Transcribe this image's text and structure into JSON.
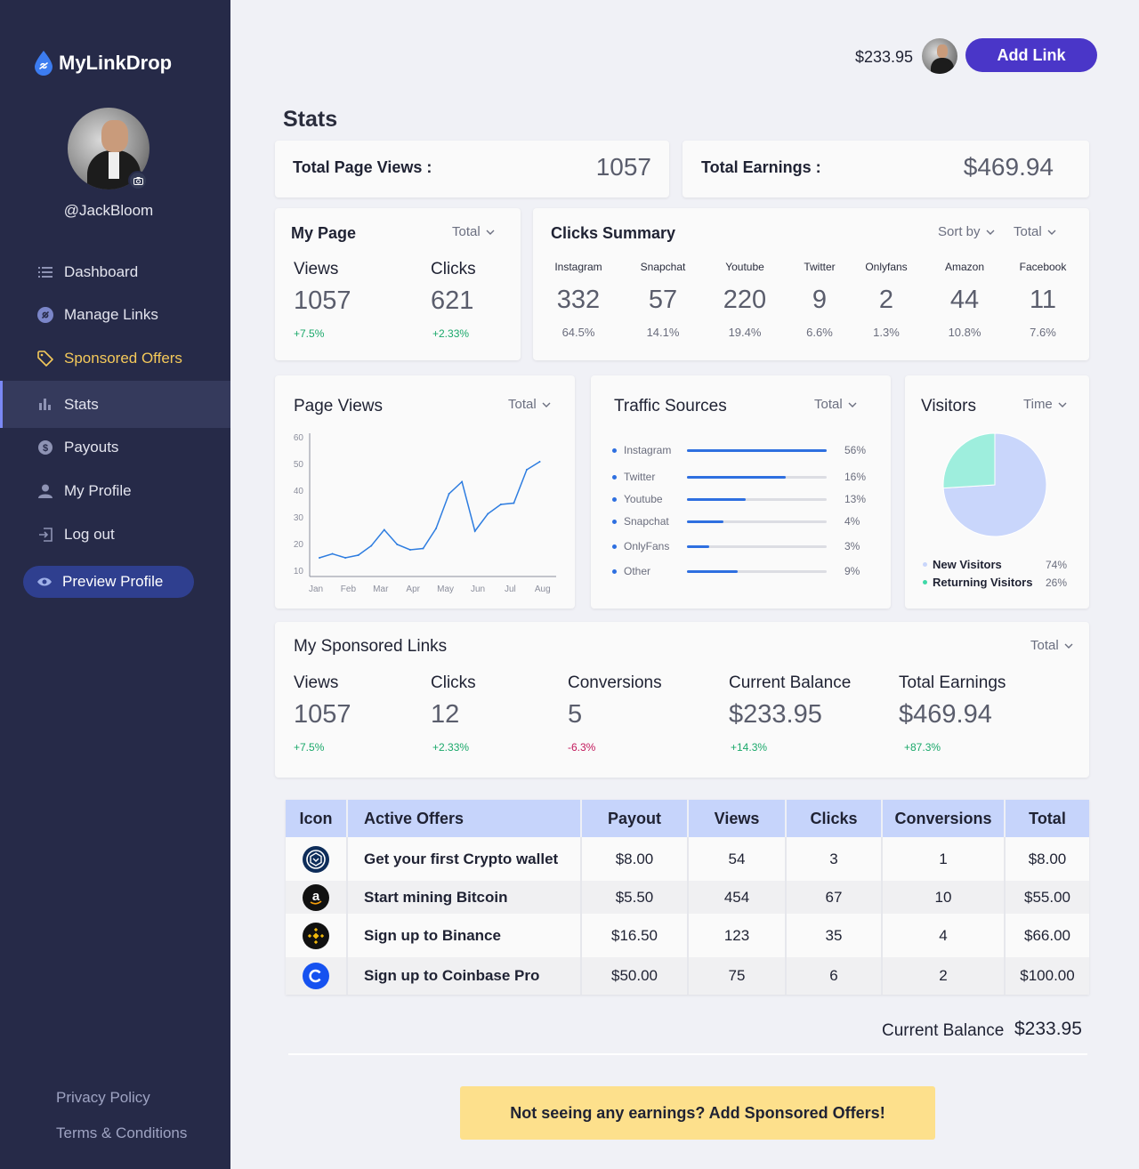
{
  "app": {
    "name": "MyLinkDrop"
  },
  "profile": {
    "username": "@JackBloom"
  },
  "nav": {
    "items": [
      {
        "label": "Dashboard",
        "icon": "list-icon"
      },
      {
        "label": "Manage Links",
        "icon": "link-icon"
      },
      {
        "label": "Sponsored Offers",
        "icon": "tag-icon"
      },
      {
        "label": "Stats",
        "icon": "bar-chart-icon"
      },
      {
        "label": "Payouts",
        "icon": "dollar-circle-icon"
      },
      {
        "label": "My Profile",
        "icon": "person-icon"
      },
      {
        "label": "Log out",
        "icon": "logout-icon"
      }
    ],
    "preview_label": "Preview Profile",
    "privacy": "Privacy Policy",
    "terms": "Terms & Conditions"
  },
  "topbar": {
    "balance": "$233.95",
    "add_link_label": "Add Link"
  },
  "page_title": "Stats",
  "summary": {
    "views_label": "Total Page Views :",
    "views_value": "1057",
    "earnings_label": "Total Earnings :",
    "earnings_value": "$469.94"
  },
  "my_page": {
    "title": "My Page",
    "filter": "Total",
    "views_label": "Views",
    "views_value": "1057",
    "views_delta": "+7.5%",
    "clicks_label": "Clicks",
    "clicks_value": "621",
    "clicks_delta": "+2.33%"
  },
  "clicks_summary": {
    "title": "Clicks Summary",
    "sort_label": "Sort by",
    "filter": "Total",
    "columns": [
      {
        "name": "Instagram",
        "value": "332",
        "pct": "64.5%"
      },
      {
        "name": "Snapchat",
        "value": "57",
        "pct": "14.1%"
      },
      {
        "name": "Youtube",
        "value": "220",
        "pct": "19.4%"
      },
      {
        "name": "Twitter",
        "value": "9",
        "pct": "6.6%"
      },
      {
        "name": "Onlyfans",
        "value": "2",
        "pct": "1.3%"
      },
      {
        "name": "Amazon",
        "value": "44",
        "pct": "10.8%"
      },
      {
        "name": "Facebook",
        "value": "11",
        "pct": "7.6%"
      }
    ]
  },
  "page_views": {
    "title": "Page Views",
    "filter": "Total",
    "y_ticks": [
      "60",
      "50",
      "40",
      "30",
      "20",
      "10"
    ],
    "x_ticks": [
      "Jan",
      "Feb",
      "Mar",
      "Apr",
      "May",
      "Jun",
      "Jul",
      "Aug"
    ]
  },
  "chart_data": {
    "type": "line",
    "title": "Page Views",
    "x": [
      0,
      0.4,
      0.8,
      1.2,
      1.6,
      2.0,
      2.4,
      2.8,
      3.2,
      3.6,
      4.0,
      4.4,
      4.8,
      5.2,
      5.6,
      6.0,
      6.4,
      6.8
    ],
    "y": [
      15,
      16.5,
      15,
      16,
      19.5,
      25.5,
      20,
      18,
      18.5,
      26,
      39,
      43.5,
      25,
      31.5,
      35,
      35.5,
      48,
      51
    ],
    "x_ticks": [
      "Jan",
      "Feb",
      "Mar",
      "Apr",
      "May",
      "Jun",
      "Jul",
      "Aug"
    ],
    "ylim": [
      10,
      60
    ],
    "y_ticks": [
      10,
      20,
      30,
      40,
      50,
      60
    ],
    "grid": false,
    "color": "#2e7de0"
  },
  "traffic_sources": {
    "title": "Traffic Sources",
    "filter": "Total",
    "rows": [
      {
        "name": "Instagram",
        "pct": "56%",
        "fill": 1.0
      },
      {
        "name": "Twitter",
        "pct": "16%",
        "fill": 0.71
      },
      {
        "name": "Youtube",
        "pct": "13%",
        "fill": 0.42
      },
      {
        "name": "Snapchat",
        "pct": "4%",
        "fill": 0.26
      },
      {
        "name": "OnlyFans",
        "pct": "3%",
        "fill": 0.16
      },
      {
        "name": "Other",
        "pct": "9%",
        "fill": 0.36
      }
    ]
  },
  "visitors": {
    "title": "Visitors",
    "filter": "Time",
    "slices": [
      {
        "label": "New Visitors",
        "pct": "74%",
        "value": 0.74,
        "color": "#c9d6fb"
      },
      {
        "label": "Returning Visitors",
        "pct": "26%",
        "value": 0.26,
        "color": "#9eeedd"
      }
    ]
  },
  "sponsored_links": {
    "title": "My Sponsored Links",
    "filter": "Total",
    "stats": [
      {
        "label": "Views",
        "value": "1057",
        "delta": "+7.5%",
        "trend": "pos"
      },
      {
        "label": "Clicks",
        "value": "12",
        "delta": "+2.33%",
        "trend": "pos"
      },
      {
        "label": "Conversions",
        "value": "5",
        "delta": "-6.3%",
        "trend": "neg"
      },
      {
        "label": "Current Balance",
        "value": "$233.95",
        "delta": "+14.3%",
        "trend": "pos"
      },
      {
        "label": "Total Earnings",
        "value": "$469.94",
        "delta": "+87.3%",
        "trend": "pos"
      }
    ]
  },
  "offers_table": {
    "headers": [
      "Icon",
      "Active Offers",
      "Payout",
      "Views",
      "Clicks",
      "Conversions",
      "Total"
    ],
    "rows": [
      {
        "icon": "crypto-com-icon",
        "offer": "Get your first Crypto wallet",
        "payout": "$8.00",
        "views": "54",
        "clicks": "3",
        "conversions": "1",
        "total": "$8.00"
      },
      {
        "icon": "amazon-icon",
        "offer": "Start mining Bitcoin",
        "payout": "$5.50",
        "views": "454",
        "clicks": "67",
        "conversions": "10",
        "total": "$55.00"
      },
      {
        "icon": "binance-icon",
        "offer": "Sign up to Binance",
        "payout": "$16.50",
        "views": "123",
        "clicks": "35",
        "conversions": "4",
        "total": "$66.00"
      },
      {
        "icon": "coinbase-icon",
        "offer": "Sign up to Coinbase Pro",
        "payout": "$50.00",
        "views": "75",
        "clicks": "6",
        "conversions": "2",
        "total": "$100.00"
      }
    ]
  },
  "footer": {
    "balance_label": "Current Balance",
    "balance_value": "$233.95",
    "cta": "Not seeing any earnings? Add Sponsored Offers!"
  }
}
